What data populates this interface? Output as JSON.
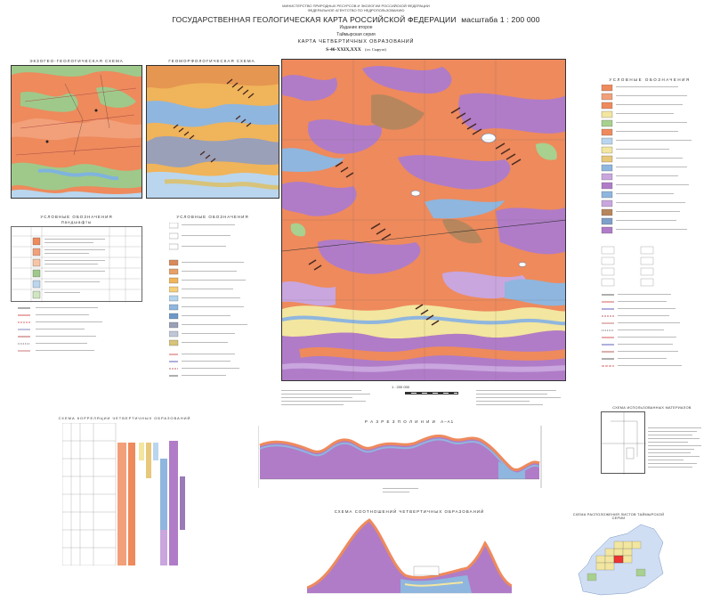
{
  "header": {
    "ministry": "МИНИСТЕРСТВО ПРИРОДНЫХ РЕСУРСОВ И ЭКОЛОГИИ РОССИЙСКОЙ ФЕДЕРАЦИИ",
    "agency": "ФЕДЕРАЛЬНОЕ АГЕНТСТВО ПО НЕДРОПОЛЬЗОВАНИЮ",
    "title": "ГОСУДАРСТВЕННАЯ ГЕОЛОГИЧЕСКАЯ КАРТА РОССИЙСКОЙ ФЕДЕРАЦИИ",
    "scale": "масштаба 1 : 200 000",
    "edition": "Издание второе",
    "series": "Таймырская серия",
    "map_name": "КАРТА ЧЕТВЕРТИЧНЫХ ОБРАЗОВАНИЙ",
    "sheet": "S-46-XXIX,XXX",
    "sheet_note": "(оз. Сырута)"
  },
  "side_maps": {
    "left_title": "ЭКЗОГЕО-ГЕОЛОГИЧЕСКАЯ СХЕМА",
    "right_title": "ГЕОМОРФОЛОГИЧЕСКАЯ СХЕМА",
    "left_legend_title": "УСЛОВНЫЕ ОБОЗНАЧЕНИЯ",
    "left_legend_sub": "Ландшафты",
    "right_legend_title": "УСЛОВНЫЕ ОБОЗНАЧЕНИЯ"
  },
  "main_map": {
    "legend_title": "УСЛОВНЫЕ ОБОЗНАЧЕНИЯ",
    "scale_label": "1 : 200 000"
  },
  "bottom": {
    "correlation_title": "СХЕМА КОРРЕЛЯЦИИ ЧЕТВЕРТИЧНЫХ ОБРАЗОВАНИЙ",
    "section_title": "Р А З Р Е З   П О   Л И Н И И",
    "section_line": "А–А1",
    "relations_title": "СХЕМА СООТНОШЕНИЙ ЧЕТВЕРТИЧНЫХ ОБРАЗОВАНИЙ",
    "layout_title": "СХЕМА РАСПОЛОЖЕНИЯ ЛИСТОВ ТАЙМЫРСКОЙ СЕРИИ",
    "index_title": "СХЕМА ИСПОЛЬЗОВАННЫХ МАТЕРИАЛОВ"
  },
  "colors": {
    "orange": "#ee8a5c",
    "salmon": "#f2a07a",
    "purple": "#b07cc8",
    "lavender": "#c9a6de",
    "blue": "#8fb6de",
    "lightblue": "#b9d6ee",
    "yellow": "#f2e6a0",
    "green": "#a8d08f",
    "brown": "#b8865c",
    "darkbrown": "#6b3b2a"
  }
}
